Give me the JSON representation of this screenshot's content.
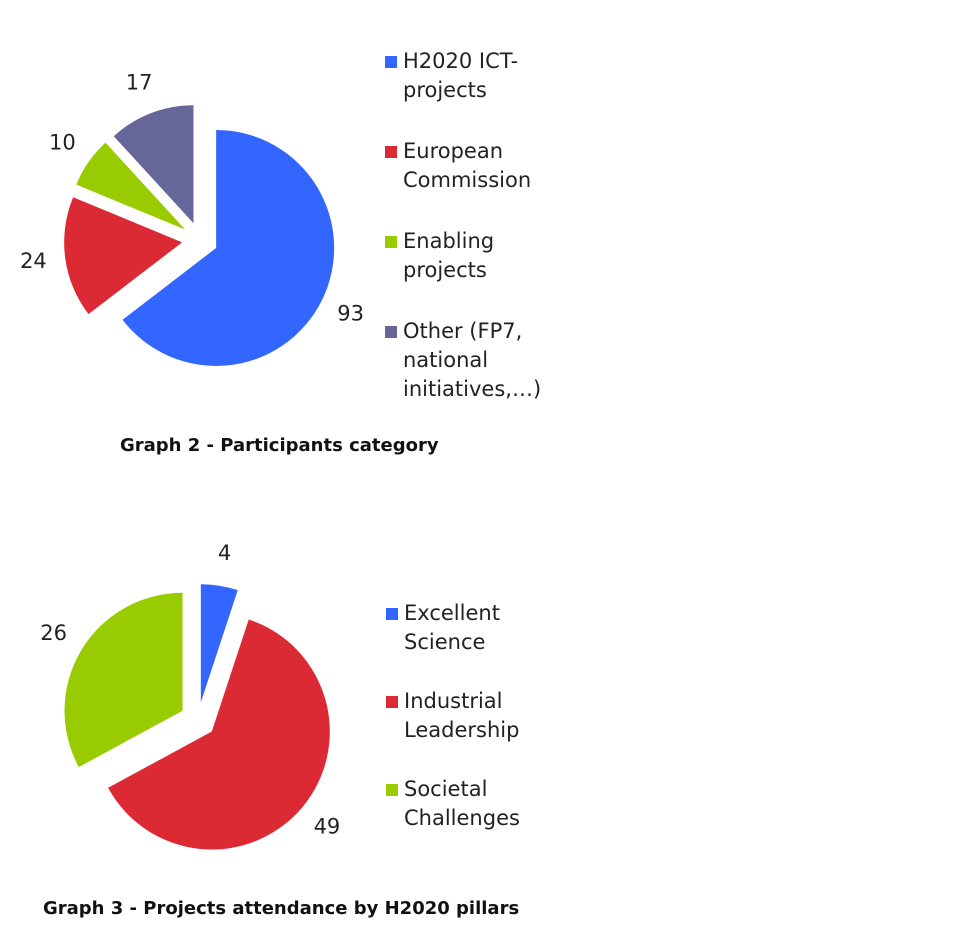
{
  "chart_data": [
    {
      "type": "pie",
      "caption": "Graph 2 - Participants category",
      "categories": [
        "H2020 ICT-projects",
        "European Commission",
        "Enabling projects",
        "Other (FP7, national initiatives,…)"
      ],
      "values": [
        93,
        24,
        10,
        17
      ],
      "colors": [
        "#3366ff",
        "#dc2a35",
        "#99cc00",
        "#666699"
      ]
    },
    {
      "type": "pie",
      "caption": "Graph 3 - Projects attendance by H2020 pillars",
      "categories": [
        "Excellent Science",
        "Industrial Leadership",
        "Societal Challenges"
      ],
      "values": [
        4,
        49,
        26
      ],
      "colors": [
        "#3366ff",
        "#dc2a35",
        "#99cc00"
      ]
    }
  ]
}
